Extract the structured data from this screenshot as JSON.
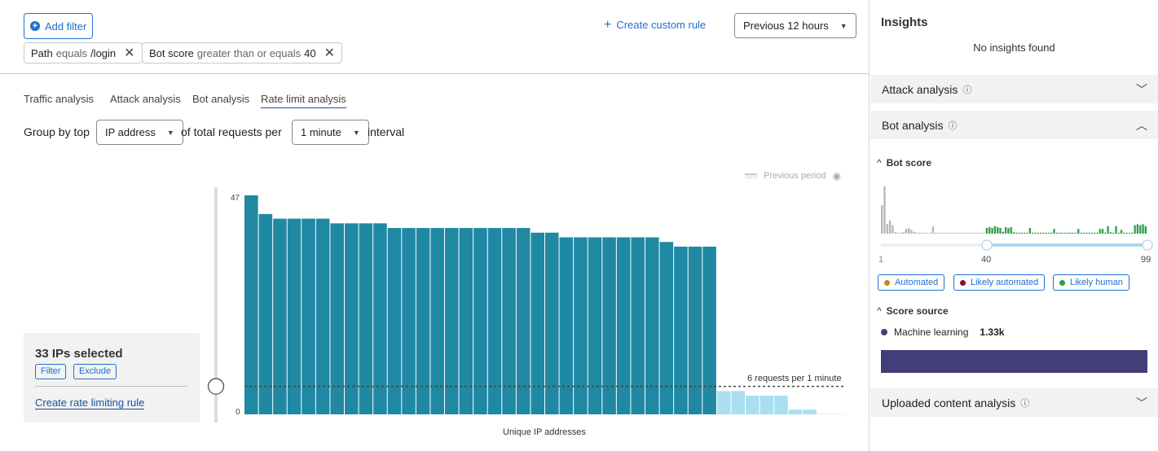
{
  "toolbar": {
    "add_filter": "Add filter",
    "create_custom_rule": "Create custom rule",
    "time_range": "Previous 12 hours"
  },
  "filters": [
    {
      "field": "Path",
      "operator": "equals",
      "value": "/login"
    },
    {
      "field": "Bot score",
      "operator": "greater than or equals",
      "value": "40"
    }
  ],
  "tabs": [
    {
      "label": "Traffic analysis"
    },
    {
      "label": "Attack analysis"
    },
    {
      "label": "Bot analysis"
    },
    {
      "label": "Rate limit analysis",
      "active": true
    }
  ],
  "group_by": {
    "prefix": "Group by top",
    "field": "IP address",
    "middle": "of total requests per",
    "interval": "1 minute",
    "suffix": "interval"
  },
  "chart_data": {
    "type": "bar",
    "xlabel": "Unique IP addresses",
    "ylim": [
      0,
      47
    ],
    "y_ticks": [
      "47",
      "0"
    ],
    "values": [
      47,
      43,
      42,
      42,
      42,
      42,
      41,
      41,
      41,
      41,
      40,
      40,
      40,
      40,
      40,
      40,
      40,
      40,
      40,
      40,
      39,
      39,
      38,
      38,
      38,
      38,
      38,
      38,
      38,
      37,
      36,
      36,
      36,
      5,
      5,
      4,
      4,
      4,
      1,
      1,
      0,
      0
    ],
    "selected_count": 33,
    "threshold": {
      "value": 6,
      "label": "6 requests per 1 minute"
    },
    "legend": {
      "previous_period": "Previous period"
    },
    "colors": {
      "selected": "#1f88a3",
      "unselected": "#a9dfee",
      "threshold": "#444444"
    }
  },
  "selection_panel": {
    "title": "33 IPs selected",
    "filter": "Filter",
    "exclude": "Exclude",
    "create_rule": "Create rate limiting rule"
  },
  "insights": {
    "title": "Insights",
    "empty": "No insights found",
    "attack_analysis": "Attack analysis",
    "bot_analysis": "Bot analysis",
    "bot_score": {
      "title": "Bot score",
      "min": "1",
      "selected": "40",
      "max": "99",
      "histogram": [
        60,
        100,
        20,
        28,
        18,
        3,
        2,
        2,
        3,
        10,
        12,
        8,
        4,
        2,
        2,
        2,
        2,
        2,
        2,
        15,
        2,
        2,
        2,
        2,
        2,
        2,
        2,
        2,
        2,
        2,
        2,
        2,
        2,
        2,
        2,
        2,
        2,
        2,
        2,
        12,
        14,
        12,
        16,
        14,
        12,
        4,
        14,
        12,
        14,
        3,
        2,
        2,
        2,
        2,
        2,
        12,
        2,
        2,
        2,
        2,
        2,
        2,
        2,
        2,
        10,
        2,
        2,
        2,
        2,
        2,
        2,
        2,
        2,
        10,
        2,
        2,
        2,
        2,
        2,
        2,
        2,
        10,
        10,
        2,
        16,
        3,
        2,
        16,
        2,
        8,
        2,
        2,
        2,
        2,
        18,
        20,
        18,
        20,
        16
      ],
      "legend": [
        {
          "label": "Automated",
          "color": "#c48a0c"
        },
        {
          "label": "Likely automated",
          "color": "#8a0f2f"
        },
        {
          "label": "Likely human",
          "color": "#2e9e4a"
        }
      ]
    },
    "score_source": {
      "title": "Score source",
      "label": "Machine learning",
      "value": "1.33k",
      "color": "#433d7a"
    },
    "uploaded": "Uploaded content analysis"
  }
}
